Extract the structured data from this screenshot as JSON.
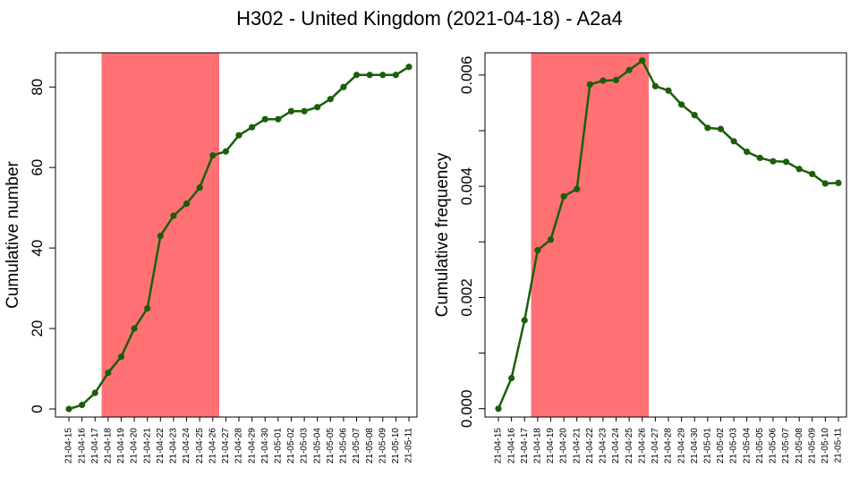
{
  "title": "H302 - United Kingdom (2021-04-18) - A2a4",
  "colors": {
    "line": "#1b5e0a",
    "highlight": "#ff7175",
    "axis": "#000000"
  },
  "chart_data": [
    {
      "type": "line",
      "ylabel": "Cumulative number",
      "ylim": [
        -2,
        88.5
      ],
      "yticks": [
        0,
        20,
        40,
        60,
        80
      ],
      "ytick_labels": [
        "0",
        "20",
        "40",
        "60",
        "80"
      ],
      "highlight": [
        "21-04-18",
        "21-04-26"
      ],
      "categories": [
        "21-04-15",
        "21-04-16",
        "21-04-17",
        "21-04-18",
        "21-04-19",
        "21-04-20",
        "21-04-21",
        "21-04-22",
        "21-04-23",
        "21-04-24",
        "21-04-25",
        "21-04-26",
        "21-04-27",
        "21-04-28",
        "21-04-29",
        "21-04-30",
        "21-05-01",
        "21-05-02",
        "21-05-03",
        "21-05-04",
        "21-05-05",
        "21-05-06",
        "21-05-07",
        "21-05-08",
        "21-05-09",
        "21-05-10",
        "21-05-11"
      ],
      "values": [
        0,
        1,
        4,
        9,
        13,
        20,
        25,
        43,
        48,
        51,
        55,
        63,
        64,
        68,
        70,
        72,
        72,
        74,
        74,
        75,
        77,
        80,
        83,
        83,
        83,
        83,
        85
      ]
    },
    {
      "type": "line",
      "ylabel": "Cumulative frequency",
      "ylim": [
        -0.00015,
        0.0064
      ],
      "yticks": [
        0.0,
        0.002,
        0.004,
        0.006
      ],
      "ytick_labels": [
        "0.000",
        "0.002",
        "0.004",
        "0.006"
      ],
      "minor_yticks": [
        0.001,
        0.003,
        0.005
      ],
      "highlight": [
        "21-04-18",
        "21-04-26"
      ],
      "categories": [
        "21-04-15",
        "21-04-16",
        "21-04-17",
        "21-04-18",
        "21-04-19",
        "21-04-20",
        "21-04-21",
        "21-04-22",
        "21-04-23",
        "21-04-24",
        "21-04-25",
        "21-04-26",
        "21-04-27",
        "21-04-28",
        "21-04-29",
        "21-04-30",
        "21-05-01",
        "21-05-02",
        "21-05-03",
        "21-05-04",
        "21-05-05",
        "21-05-06",
        "21-05-07",
        "21-05-08",
        "21-05-09",
        "21-05-10",
        "21-05-11"
      ],
      "values": [
        0.0,
        0.00055,
        0.00159,
        0.00285,
        0.00304,
        0.00382,
        0.00395,
        0.00583,
        0.0059,
        0.00591,
        0.00609,
        0.00626,
        0.0058,
        0.00572,
        0.00547,
        0.00528,
        0.00505,
        0.00503,
        0.00481,
        0.00462,
        0.00451,
        0.00445,
        0.00444,
        0.00431,
        0.00422,
        0.00405,
        0.00406
      ]
    }
  ]
}
